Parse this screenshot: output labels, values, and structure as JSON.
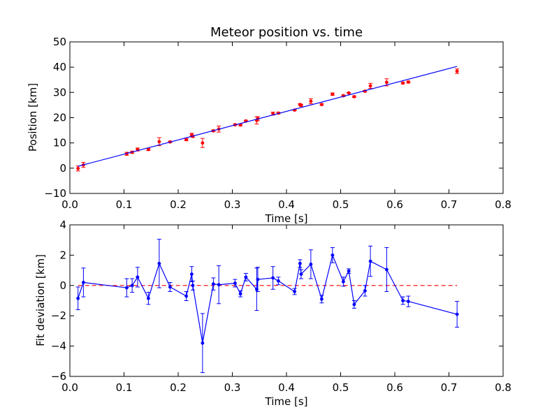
{
  "chart_data": [
    {
      "type": "scatter",
      "title": "Meteor position vs. time",
      "xlabel": "Time [s]",
      "ylabel": "Position [km]",
      "xlim": [
        0.0,
        0.8
      ],
      "ylim": [
        -10,
        50
      ],
      "xticks": [
        0.0,
        0.1,
        0.2,
        0.3,
        0.4,
        0.5,
        0.6,
        0.7,
        0.8
      ],
      "xtick_labels": [
        "0.0",
        "0.1",
        "0.2",
        "0.3",
        "0.4",
        "0.5",
        "0.6",
        "0.7",
        "0.8"
      ],
      "yticks": [
        -10,
        0,
        10,
        20,
        30,
        40,
        50
      ],
      "ytick_labels": [
        "−10",
        "0",
        "10",
        "20",
        "30",
        "40",
        "50"
      ],
      "grid": false,
      "series": [
        {
          "kind": "errorbar-points",
          "color": "#ff0000",
          "points": [
            {
              "x": 0.015,
              "y": -0.1,
              "err": 1.0
            },
            {
              "x": 0.025,
              "y": 1.3,
              "err": 1.0
            },
            {
              "x": 0.105,
              "y": 5.7,
              "err": 0.6
            },
            {
              "x": 0.115,
              "y": 6.3,
              "err": 0.4
            },
            {
              "x": 0.125,
              "y": 7.4,
              "err": 0.6
            },
            {
              "x": 0.145,
              "y": 7.4,
              "err": 0.4
            },
            {
              "x": 0.165,
              "y": 10.5,
              "err": 1.6
            },
            {
              "x": 0.185,
              "y": 10.4,
              "err": 0.3
            },
            {
              "x": 0.215,
              "y": 11.3,
              "err": 0.4
            },
            {
              "x": 0.225,
              "y": 13.2,
              "err": 0.6
            },
            {
              "x": 0.227,
              "y": 12.6,
              "err": 0.4
            },
            {
              "x": 0.245,
              "y": 10.0,
              "err": 1.8
            },
            {
              "x": 0.265,
              "y": 14.8,
              "err": 0.3
            },
            {
              "x": 0.275,
              "y": 15.5,
              "err": 1.2
            },
            {
              "x": 0.305,
              "y": 17.2,
              "err": 0.3
            },
            {
              "x": 0.315,
              "y": 17.1,
              "err": 0.3
            },
            {
              "x": 0.325,
              "y": 18.7,
              "err": 0.3
            },
            {
              "x": 0.345,
              "y": 18.9,
              "err": 1.4
            },
            {
              "x": 0.347,
              "y": 19.6,
              "err": 0.8
            },
            {
              "x": 0.375,
              "y": 21.6,
              "err": 0.6
            },
            {
              "x": 0.385,
              "y": 21.8,
              "err": 0.3
            },
            {
              "x": 0.415,
              "y": 23.0,
              "err": 0.2
            },
            {
              "x": 0.425,
              "y": 25.2,
              "err": 0.3
            },
            {
              "x": 0.427,
              "y": 24.9,
              "err": 0.4
            },
            {
              "x": 0.445,
              "y": 26.5,
              "err": 1.0
            },
            {
              "x": 0.465,
              "y": 25.2,
              "err": 0.3
            },
            {
              "x": 0.485,
              "y": 29.3,
              "err": 0.5
            },
            {
              "x": 0.505,
              "y": 28.7,
              "err": 0.3
            },
            {
              "x": 0.515,
              "y": 29.8,
              "err": 0.2
            },
            {
              "x": 0.525,
              "y": 28.3,
              "err": 0.3
            },
            {
              "x": 0.545,
              "y": 30.5,
              "err": 0.3
            },
            {
              "x": 0.555,
              "y": 32.6,
              "err": 1.0
            },
            {
              "x": 0.585,
              "y": 34.0,
              "err": 1.4
            },
            {
              "x": 0.615,
              "y": 33.7,
              "err": 0.3
            },
            {
              "x": 0.625,
              "y": 34.1,
              "err": 0.4
            },
            {
              "x": 0.715,
              "y": 38.4,
              "err": 0.9
            }
          ]
        },
        {
          "kind": "line",
          "color": "#0000ff",
          "points": [
            {
              "x": 0.015,
              "y": 0.75
            },
            {
              "x": 0.715,
              "y": 40.3
            }
          ]
        }
      ]
    },
    {
      "type": "line",
      "title": "",
      "xlabel": "Time [s]",
      "ylabel": "Fit deviation [km]",
      "xlim": [
        0.0,
        0.8
      ],
      "ylim": [
        -6,
        4
      ],
      "xticks": [
        0.0,
        0.1,
        0.2,
        0.3,
        0.4,
        0.5,
        0.6,
        0.7,
        0.8
      ],
      "xtick_labels": [
        "0.0",
        "0.1",
        "0.2",
        "0.3",
        "0.4",
        "0.5",
        "0.6",
        "0.7",
        "0.8"
      ],
      "yticks": [
        -6,
        -4,
        -2,
        0,
        2,
        4
      ],
      "ytick_labels": [
        "−6",
        "−4",
        "−2",
        "0",
        "2",
        "4"
      ],
      "grid": false,
      "series": [
        {
          "kind": "reference-line",
          "color": "#ff0000",
          "dashed": true,
          "points": [
            {
              "x": 0.015,
              "y": 0
            },
            {
              "x": 0.715,
              "y": 0
            }
          ]
        },
        {
          "kind": "errorbar-line",
          "color": "#0000ff",
          "points": [
            {
              "x": 0.015,
              "y": -0.85,
              "err": 0.75
            },
            {
              "x": 0.025,
              "y": 0.2,
              "err": 0.95
            },
            {
              "x": 0.105,
              "y": -0.15,
              "err": 0.6
            },
            {
              "x": 0.115,
              "y": 0.0,
              "err": 0.45
            },
            {
              "x": 0.125,
              "y": 0.55,
              "err": 0.65
            },
            {
              "x": 0.145,
              "y": -0.85,
              "err": 0.4
            },
            {
              "x": 0.165,
              "y": 1.45,
              "err": 1.6
            },
            {
              "x": 0.185,
              "y": -0.1,
              "err": 0.3
            },
            {
              "x": 0.215,
              "y": -0.7,
              "err": 0.3
            },
            {
              "x": 0.225,
              "y": 0.75,
              "err": 0.5
            },
            {
              "x": 0.227,
              "y": 0.0,
              "err": 0.3
            },
            {
              "x": 0.245,
              "y": -3.8,
              "err": 1.95
            },
            {
              "x": 0.265,
              "y": 0.1,
              "err": 0.4
            },
            {
              "x": 0.275,
              "y": 0.05,
              "err": 1.25
            },
            {
              "x": 0.305,
              "y": 0.15,
              "err": 0.25
            },
            {
              "x": 0.315,
              "y": -0.55,
              "err": 0.2
            },
            {
              "x": 0.325,
              "y": 0.55,
              "err": 0.25
            },
            {
              "x": 0.345,
              "y": -0.25,
              "err": 1.4
            },
            {
              "x": 0.347,
              "y": 0.4,
              "err": 0.8
            },
            {
              "x": 0.375,
              "y": 0.5,
              "err": 0.75
            },
            {
              "x": 0.385,
              "y": 0.3,
              "err": 0.25
            },
            {
              "x": 0.415,
              "y": -0.4,
              "err": 0.2
            },
            {
              "x": 0.425,
              "y": 1.45,
              "err": 0.25
            },
            {
              "x": 0.427,
              "y": 0.75,
              "err": 0.3
            },
            {
              "x": 0.445,
              "y": 1.4,
              "err": 0.95
            },
            {
              "x": 0.465,
              "y": -0.9,
              "err": 0.25
            },
            {
              "x": 0.485,
              "y": 2.0,
              "err": 0.5
            },
            {
              "x": 0.505,
              "y": 0.25,
              "err": 0.3
            },
            {
              "x": 0.515,
              "y": 0.95,
              "err": 0.15
            },
            {
              "x": 0.525,
              "y": -1.25,
              "err": 0.25
            },
            {
              "x": 0.545,
              "y": -0.35,
              "err": 0.35
            },
            {
              "x": 0.555,
              "y": 1.6,
              "err": 1.0
            },
            {
              "x": 0.585,
              "y": 1.05,
              "err": 1.45
            },
            {
              "x": 0.615,
              "y": -1.0,
              "err": 0.25
            },
            {
              "x": 0.625,
              "y": -1.05,
              "err": 0.35
            },
            {
              "x": 0.715,
              "y": -1.9,
              "err": 0.85
            }
          ]
        }
      ]
    }
  ]
}
